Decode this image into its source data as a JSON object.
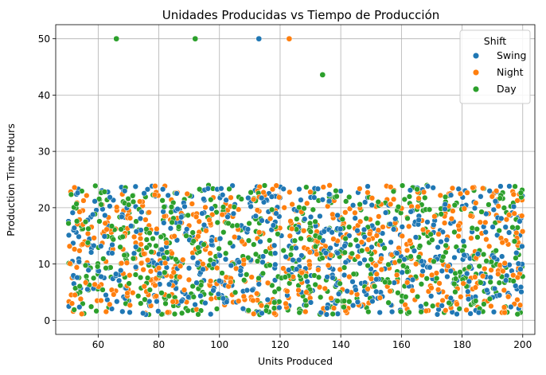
{
  "chart_data": {
    "type": "scatter",
    "title": "Unidades Producidas vs Tiempo de Producción",
    "xlabel": "Units Produced",
    "ylabel": "Production Time Hours",
    "xlim": [
      46,
      204
    ],
    "ylim": [
      -2.5,
      52.5
    ],
    "xticks": [
      60,
      80,
      100,
      120,
      140,
      160,
      180,
      200
    ],
    "yticks": [
      0,
      10,
      20,
      30,
      40,
      50
    ],
    "grid": true,
    "legend": {
      "title": "Shift",
      "position": "top-right"
    },
    "generator_note": "Bulk cloud: ~1800 random points uniformly distributed across x 50–200, y 1–24, classes drawn in order Swing, Night, Day.",
    "series": [
      {
        "name": "Swing",
        "color": "#1f77b4",
        "outliers": [
          {
            "x": 113,
            "y": 50
          }
        ]
      },
      {
        "name": "Night",
        "color": "#ff7f0e",
        "outliers": [
          {
            "x": 123,
            "y": 50
          }
        ]
      },
      {
        "name": "Day",
        "color": "#2ca02c",
        "outliers": [
          {
            "x": 66,
            "y": 50
          },
          {
            "x": 92,
            "y": 50
          },
          {
            "x": 134,
            "y": 43.6
          }
        ]
      }
    ],
    "bulk": {
      "n_per_series": 600,
      "x_range": [
        50,
        200
      ],
      "y_range": [
        1,
        24
      ]
    }
  }
}
